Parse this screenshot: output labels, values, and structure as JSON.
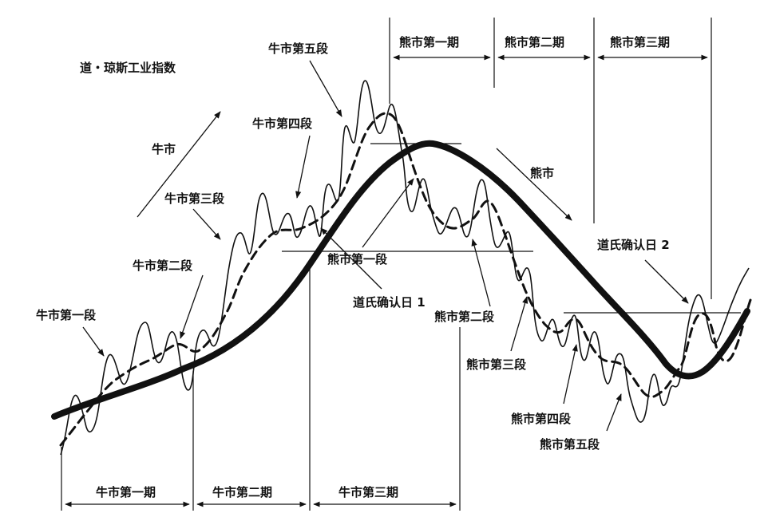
{
  "diagram": {
    "index_title": "道・琼斯工业指数",
    "trend_bull": "牛市",
    "trend_bear": "熊市",
    "bull_stages": [
      "牛市第一段",
      "牛市第二段",
      "牛市第三段",
      "牛市第四段",
      "牛市第五段"
    ],
    "bear_stages": [
      "熊市第一段",
      "熊市第二段",
      "熊市第三段",
      "熊市第四段",
      "熊市第五段"
    ],
    "bull_periods": [
      "牛市第一期",
      "牛市第二期",
      "牛市第三期"
    ],
    "bear_periods": [
      "熊市第一期",
      "熊市第二期",
      "熊市第三期"
    ],
    "confirm_day_1": "道氏确认日 1",
    "confirm_day_2": "道氏确认日 2"
  },
  "colors": {
    "ink": "#111111",
    "background": "#ffffff"
  }
}
